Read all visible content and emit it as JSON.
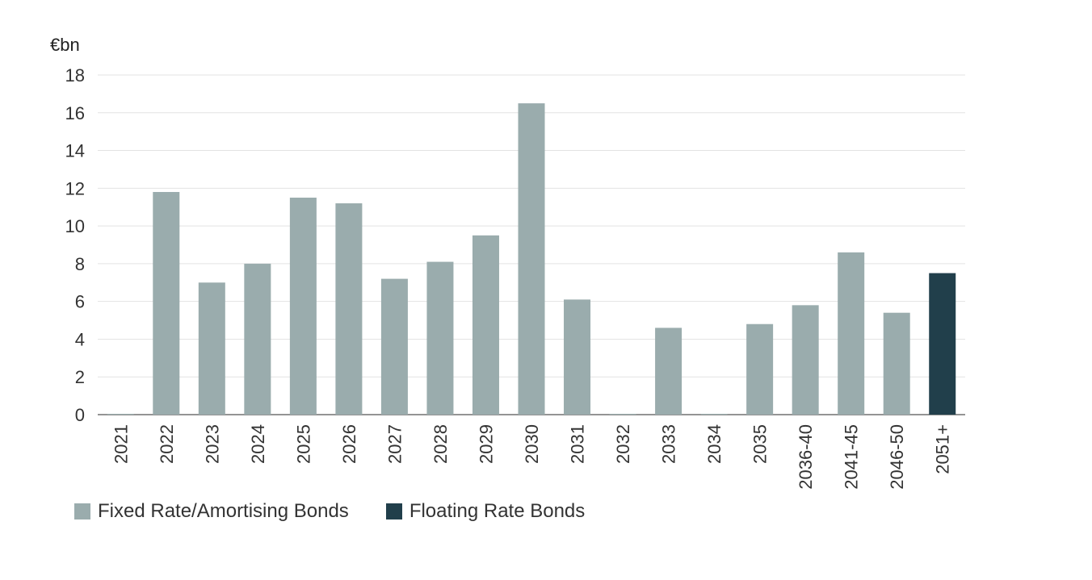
{
  "chart_data": {
    "type": "bar",
    "ylabel": "€bn",
    "ylim": [
      0,
      18
    ],
    "yticks": [
      0,
      2,
      4,
      6,
      8,
      10,
      12,
      14,
      16,
      18
    ],
    "grid": true,
    "legend_position": "bottom-left",
    "categories": [
      "2021",
      "2022",
      "2023",
      "2024",
      "2025",
      "2026",
      "2027",
      "2028",
      "2029",
      "2030",
      "2031",
      "2032",
      "2033",
      "2034",
      "2035",
      "2036-40",
      "2041-45",
      "2046-50",
      "2051+"
    ],
    "series": [
      {
        "name": "Fixed Rate/Amortising Bonds",
        "color": "#9aacad",
        "values": [
          0,
          11.8,
          7.0,
          8.0,
          11.5,
          11.2,
          7.2,
          8.1,
          9.5,
          16.5,
          6.1,
          0,
          4.6,
          0,
          4.8,
          5.8,
          8.6,
          5.4,
          0
        ]
      },
      {
        "name": "Floating Rate Bonds",
        "color": "#213f4b",
        "values": [
          0,
          0,
          0,
          0,
          0,
          0,
          0,
          0,
          0,
          0,
          0,
          0,
          0,
          0,
          0,
          0,
          0,
          0,
          7.5
        ]
      }
    ]
  }
}
